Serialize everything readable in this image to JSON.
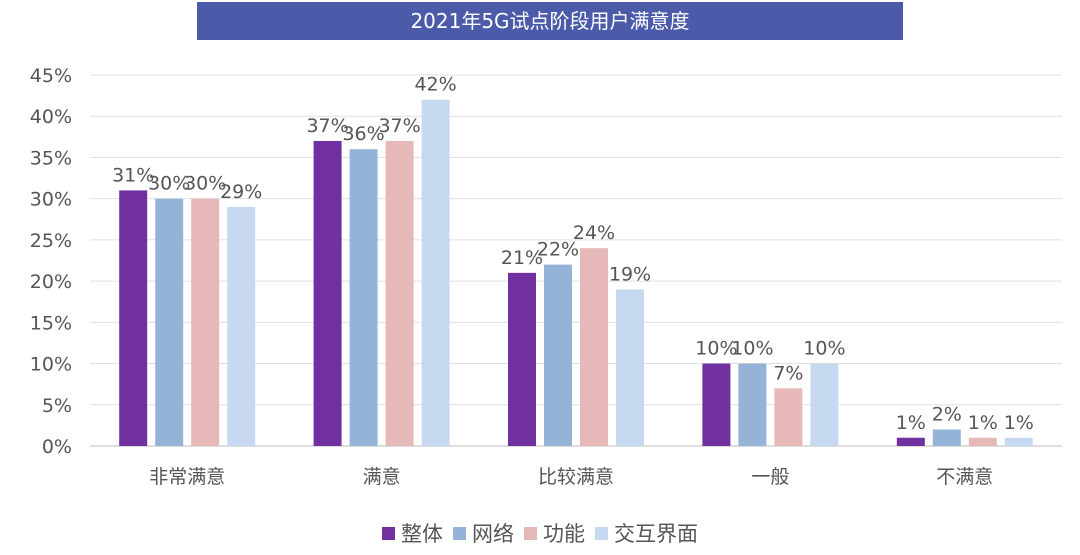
{
  "chart_data": {
    "type": "bar",
    "title": "2021年5G试点阶段用户满意度",
    "categories": [
      "非常满意",
      "满意",
      "比较满意",
      "一般",
      "不满意"
    ],
    "series": [
      {
        "name": "整体",
        "color": "#7030A0",
        "values": [
          31,
          37,
          21,
          10,
          1
        ]
      },
      {
        "name": "网络",
        "color": "#95B3D7",
        "values": [
          30,
          36,
          22,
          10,
          2
        ]
      },
      {
        "name": "功能",
        "color": "#E6B9B8",
        "values": [
          30,
          37,
          24,
          7,
          1
        ]
      },
      {
        "name": "交互界面",
        "color": "#C6D9F1",
        "values": [
          29,
          42,
          19,
          10,
          1
        ]
      }
    ],
    "ylim": [
      0,
      45
    ],
    "yticks": [
      "0%",
      "5%",
      "10%",
      "15%",
      "20%",
      "25%",
      "30%",
      "35%",
      "40%",
      "45%"
    ],
    "grid": true,
    "legend": "bottom",
    "xlabel": "",
    "ylabel": ""
  }
}
